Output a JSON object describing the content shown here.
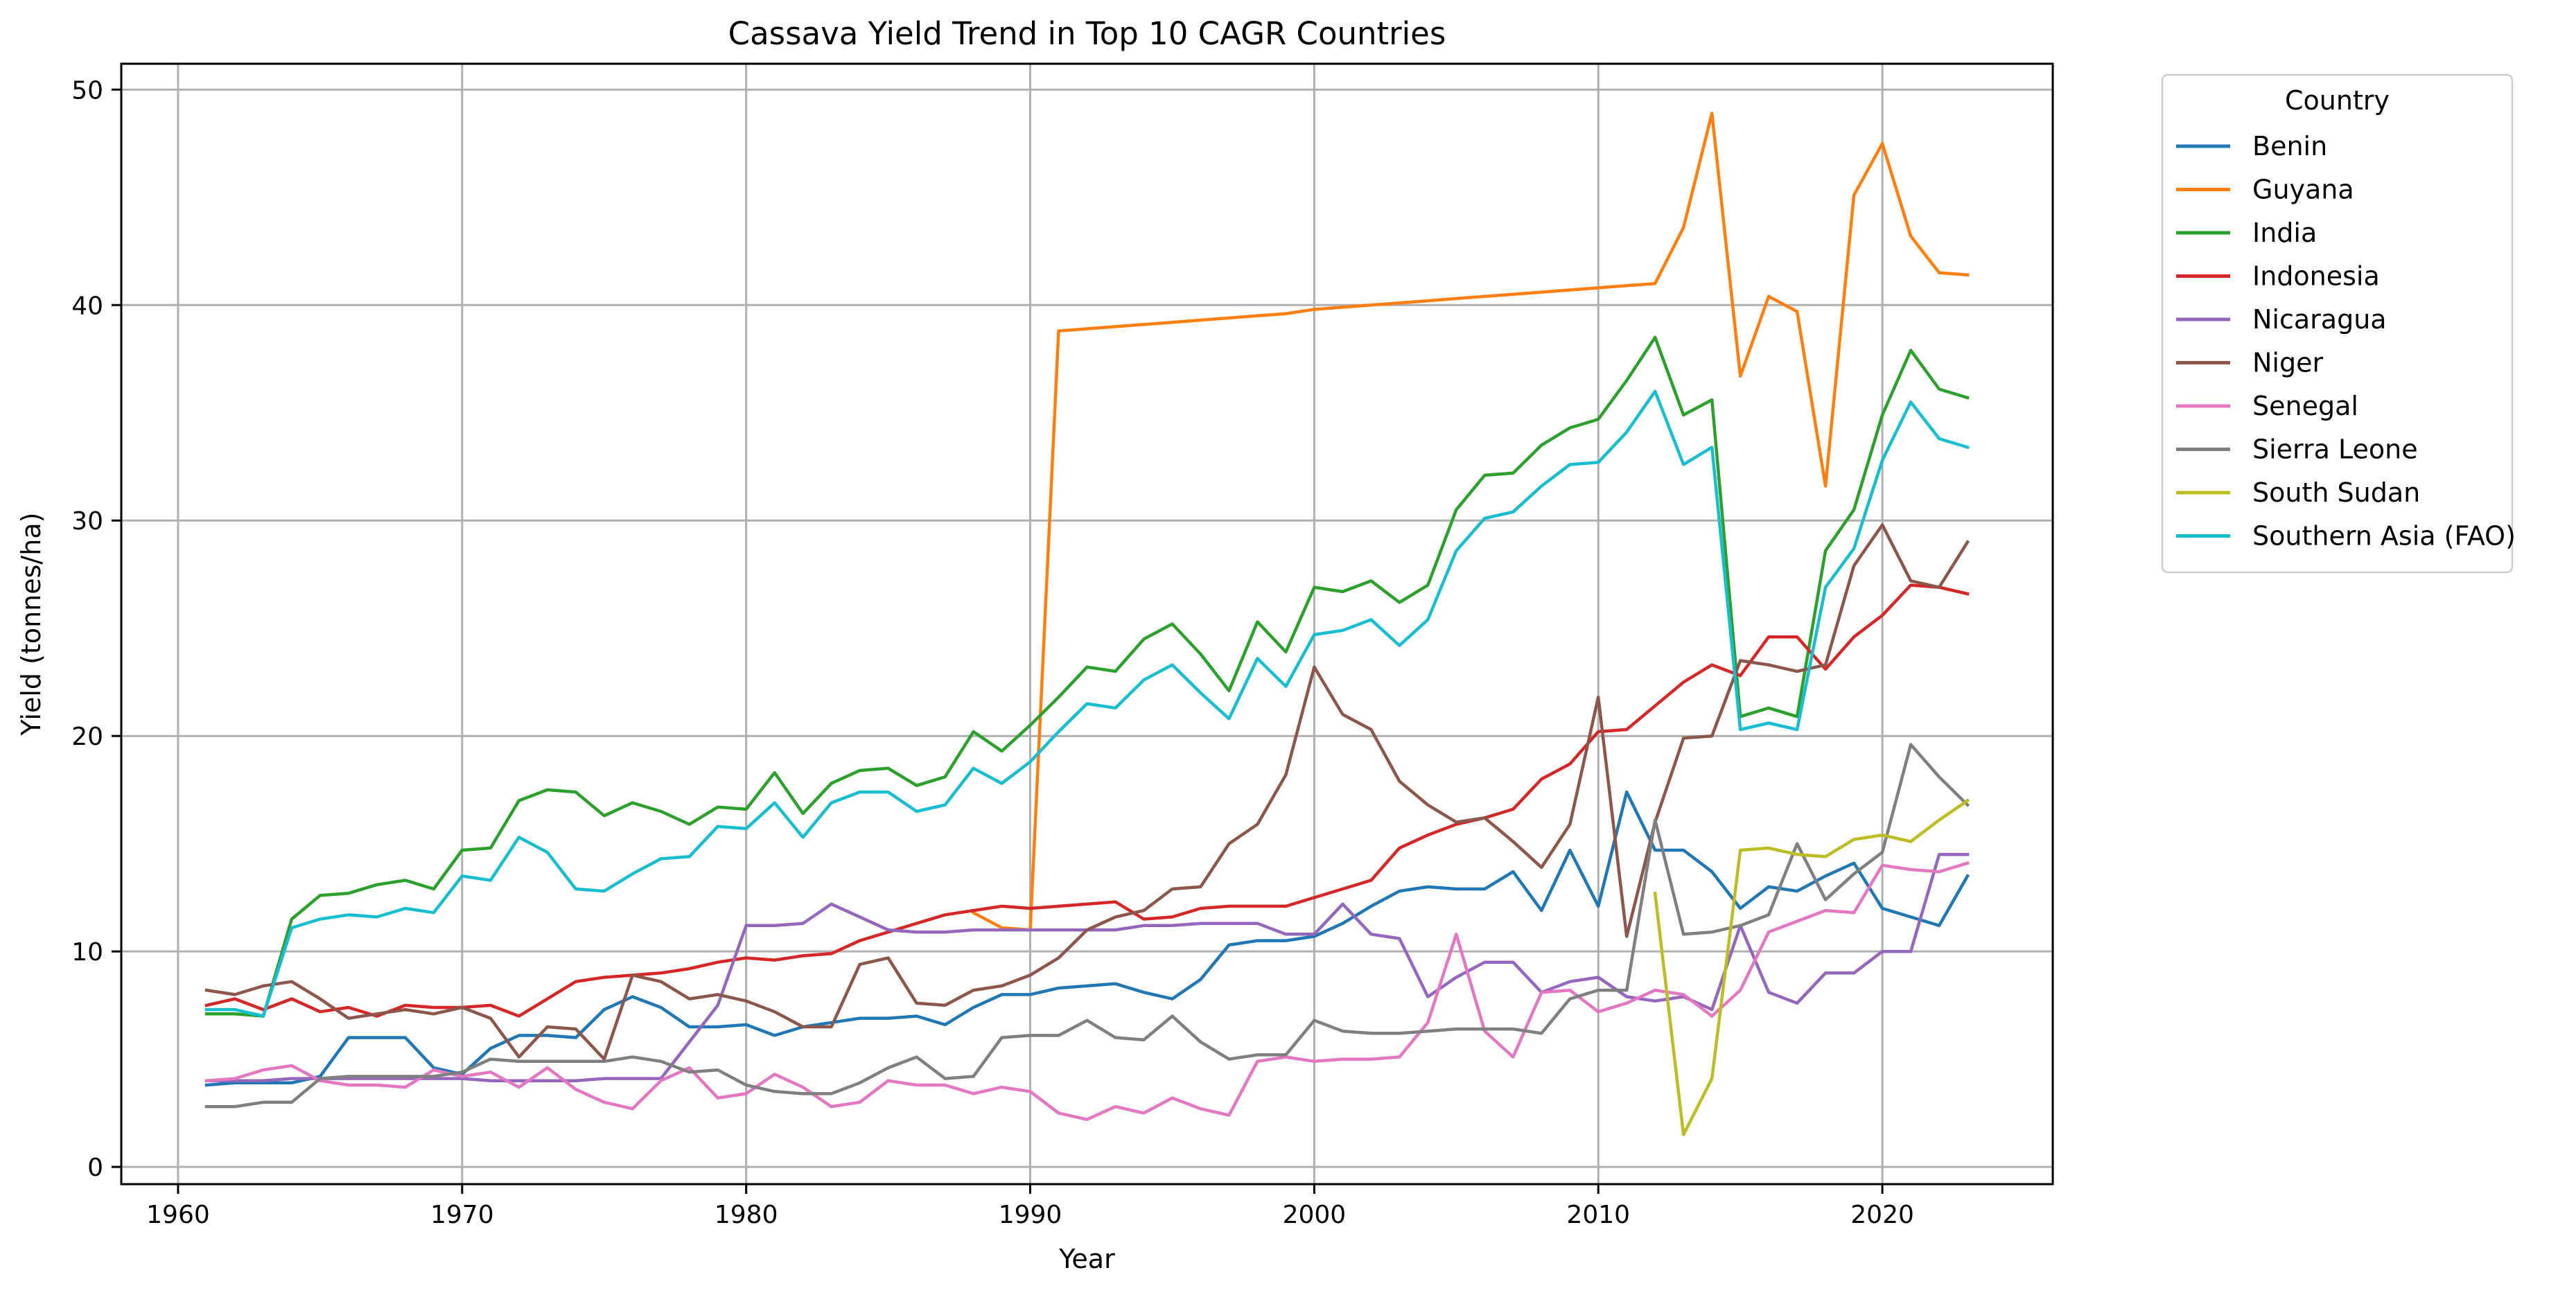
{
  "chart_data": {
    "type": "line",
    "title": "Cassava Yield Trend in Top 10 CAGR Countries",
    "xlabel": "Year",
    "ylabel": "Yield (tonnes/ha)",
    "xlim": [
      1958,
      2026
    ],
    "ylim": [
      -0.8,
      51.2
    ],
    "xticks": [
      1960,
      1970,
      1980,
      1990,
      2000,
      2010,
      2020
    ],
    "yticks": [
      0,
      10,
      20,
      30,
      40,
      50
    ],
    "grid": true,
    "legend": {
      "title": "Country",
      "placement": "outside-top-right"
    },
    "series": [
      {
        "name": "Benin",
        "color": "#1f77b4",
        "x": [
          1961,
          1962,
          1963,
          1964,
          1965,
          1966,
          1967,
          1968,
          1969,
          1970,
          1971,
          1972,
          1973,
          1974,
          1975,
          1976,
          1977,
          1978,
          1979,
          1980,
          1981,
          1982,
          1983,
          1984,
          1985,
          1986,
          1987,
          1988,
          1989,
          1990,
          1991,
          1992,
          1993,
          1994,
          1995,
          1996,
          1997,
          1998,
          1999,
          2000,
          2001,
          2002,
          2003,
          2004,
          2005,
          2006,
          2007,
          2008,
          2009,
          2010,
          2011,
          2012,
          2013,
          2014,
          2015,
          2016,
          2017,
          2018,
          2019,
          2020,
          2021,
          2022,
          2023
        ],
        "y": [
          3.8,
          3.9,
          3.9,
          3.9,
          4.2,
          6.0,
          6.0,
          6.0,
          4.6,
          4.3,
          5.5,
          6.1,
          6.1,
          6.0,
          7.3,
          7.9,
          7.4,
          6.5,
          6.5,
          6.6,
          6.1,
          6.5,
          6.7,
          6.9,
          6.9,
          7.0,
          6.6,
          7.4,
          8.0,
          8.0,
          8.3,
          8.4,
          8.5,
          8.1,
          7.8,
          8.7,
          10.3,
          10.5,
          10.5,
          10.7,
          11.3,
          12.1,
          12.8,
          13.0,
          12.9,
          12.9,
          13.7,
          11.9,
          14.7,
          12.1,
          17.4,
          14.7,
          14.7,
          13.7,
          12.0,
          13.0,
          12.8,
          13.5,
          14.1,
          12.0,
          11.6,
          11.2,
          13.5
        ]
      },
      {
        "name": "Guyana",
        "color": "#ff7f0e",
        "x": [
          1988,
          1989,
          1990,
          1991,
          1992,
          1993,
          1994,
          1995,
          1996,
          1997,
          1998,
          1999,
          2000,
          2001,
          2002,
          2003,
          2004,
          2005,
          2006,
          2007,
          2008,
          2009,
          2010,
          2011,
          2012,
          2013,
          2014,
          2015,
          2016,
          2017,
          2018,
          2019,
          2020,
          2021,
          2022,
          2023
        ],
        "y": [
          11.8,
          11.1,
          11.0,
          38.8,
          38.9,
          39.0,
          39.1,
          39.2,
          39.3,
          39.4,
          39.5,
          39.6,
          39.8,
          39.9,
          40.0,
          40.1,
          40.2,
          40.3,
          40.4,
          40.5,
          40.6,
          40.7,
          40.8,
          40.9,
          41.0,
          43.6,
          48.9,
          36.7,
          40.4,
          39.7,
          31.6,
          45.1,
          47.5,
          43.2,
          41.5,
          41.4
        ]
      },
      {
        "name": "India",
        "color": "#2ca02c",
        "x": [
          1961,
          1962,
          1963,
          1964,
          1965,
          1966,
          1967,
          1968,
          1969,
          1970,
          1971,
          1972,
          1973,
          1974,
          1975,
          1976,
          1977,
          1978,
          1979,
          1980,
          1981,
          1982,
          1983,
          1984,
          1985,
          1986,
          1987,
          1988,
          1989,
          1990,
          1991,
          1992,
          1993,
          1994,
          1995,
          1996,
          1997,
          1998,
          1999,
          2000,
          2001,
          2002,
          2003,
          2004,
          2005,
          2006,
          2007,
          2008,
          2009,
          2010,
          2011,
          2012,
          2013,
          2014,
          2015,
          2016,
          2017,
          2018,
          2019,
          2020,
          2021,
          2022,
          2023
        ],
        "y": [
          7.1,
          7.1,
          7.0,
          11.5,
          12.6,
          12.7,
          13.1,
          13.3,
          12.9,
          14.7,
          14.8,
          17.0,
          17.5,
          17.4,
          16.3,
          16.9,
          16.5,
          15.9,
          16.7,
          16.6,
          18.3,
          16.4,
          17.8,
          18.4,
          18.5,
          17.7,
          18.1,
          20.2,
          19.3,
          20.5,
          21.8,
          23.2,
          23.0,
          24.5,
          25.2,
          23.8,
          22.1,
          25.3,
          23.9,
          26.9,
          26.7,
          27.2,
          26.2,
          27.0,
          30.5,
          32.1,
          32.2,
          33.5,
          34.3,
          34.7,
          36.5,
          38.5,
          34.9,
          35.6,
          20.9,
          21.3,
          20.9,
          28.6,
          30.5,
          34.9,
          37.9,
          36.1,
          35.7
        ]
      },
      {
        "name": "Indonesia",
        "color": "#d62728",
        "x": [
          1961,
          1962,
          1963,
          1964,
          1965,
          1966,
          1967,
          1968,
          1969,
          1970,
          1971,
          1972,
          1973,
          1974,
          1975,
          1976,
          1977,
          1978,
          1979,
          1980,
          1981,
          1982,
          1983,
          1984,
          1985,
          1986,
          1987,
          1988,
          1989,
          1990,
          1991,
          1992,
          1993,
          1994,
          1995,
          1996,
          1997,
          1998,
          1999,
          2000,
          2001,
          2002,
          2003,
          2004,
          2005,
          2006,
          2007,
          2008,
          2009,
          2010,
          2011,
          2012,
          2013,
          2014,
          2015,
          2016,
          2017,
          2018,
          2019,
          2020,
          2021,
          2022,
          2023
        ],
        "y": [
          7.5,
          7.8,
          7.3,
          7.8,
          7.2,
          7.4,
          7.0,
          7.5,
          7.4,
          7.4,
          7.5,
          7.0,
          7.8,
          8.6,
          8.8,
          8.9,
          9.0,
          9.2,
          9.5,
          9.7,
          9.6,
          9.8,
          9.9,
          10.5,
          10.9,
          11.3,
          11.7,
          11.9,
          12.1,
          12.0,
          12.1,
          12.2,
          12.3,
          11.5,
          11.6,
          12.0,
          12.1,
          12.1,
          12.1,
          12.5,
          12.9,
          13.3,
          14.8,
          15.4,
          15.9,
          16.2,
          16.6,
          18.0,
          18.7,
          20.2,
          20.3,
          21.4,
          22.5,
          23.3,
          22.8,
          24.6,
          24.6,
          23.1,
          24.6,
          25.6,
          27.0,
          26.9,
          26.6
        ]
      },
      {
        "name": "Nicaragua",
        "color": "#9467bd",
        "x": [
          1961,
          1962,
          1963,
          1964,
          1965,
          1966,
          1967,
          1968,
          1969,
          1970,
          1971,
          1972,
          1973,
          1974,
          1975,
          1976,
          1977,
          1978,
          1979,
          1980,
          1981,
          1982,
          1983,
          1984,
          1985,
          1986,
          1987,
          1988,
          1989,
          1990,
          1991,
          1992,
          1993,
          1994,
          1995,
          1996,
          1997,
          1998,
          1999,
          2000,
          2001,
          2002,
          2003,
          2004,
          2005,
          2006,
          2007,
          2008,
          2009,
          2010,
          2011,
          2012,
          2013,
          2014,
          2015,
          2016,
          2017,
          2018,
          2019,
          2020,
          2021,
          2022,
          2023
        ],
        "y": [
          4.0,
          4.0,
          4.0,
          4.1,
          4.1,
          4.1,
          4.1,
          4.1,
          4.1,
          4.1,
          4.0,
          4.0,
          4.0,
          4.0,
          4.1,
          4.1,
          4.1,
          5.8,
          7.5,
          11.2,
          11.2,
          11.3,
          12.2,
          11.6,
          11.0,
          10.9,
          10.9,
          11.0,
          11.0,
          11.0,
          11.0,
          11.0,
          11.0,
          11.2,
          11.2,
          11.3,
          11.3,
          11.3,
          10.8,
          10.8,
          12.2,
          10.8,
          10.6,
          7.9,
          8.8,
          9.5,
          9.5,
          8.1,
          8.6,
          8.8,
          7.9,
          7.7,
          7.9,
          7.3,
          11.2,
          8.1,
          7.6,
          9.0,
          9.0,
          10.0,
          10.0,
          14.5,
          14.5
        ]
      },
      {
        "name": "Niger",
        "color": "#8c564b",
        "x": [
          1961,
          1962,
          1963,
          1964,
          1965,
          1966,
          1967,
          1968,
          1969,
          1970,
          1971,
          1972,
          1973,
          1974,
          1975,
          1976,
          1977,
          1978,
          1979,
          1980,
          1981,
          1982,
          1983,
          1984,
          1985,
          1986,
          1987,
          1988,
          1989,
          1990,
          1991,
          1992,
          1993,
          1994,
          1995,
          1996,
          1997,
          1998,
          1999,
          2000,
          2001,
          2002,
          2003,
          2004,
          2005,
          2006,
          2007,
          2008,
          2009,
          2010,
          2011,
          2012,
          2013,
          2014,
          2015,
          2016,
          2017,
          2018,
          2019,
          2020,
          2021,
          2022,
          2023
        ],
        "y": [
          8.2,
          8.0,
          8.4,
          8.6,
          7.8,
          6.9,
          7.1,
          7.3,
          7.1,
          7.4,
          6.9,
          5.1,
          6.5,
          6.4,
          5.0,
          8.9,
          8.6,
          7.8,
          8.0,
          7.7,
          7.2,
          6.5,
          6.5,
          9.4,
          9.7,
          7.6,
          7.5,
          8.2,
          8.4,
          8.9,
          9.7,
          11.0,
          11.6,
          11.9,
          12.9,
          13.0,
          15.0,
          15.9,
          18.2,
          23.2,
          21.0,
          20.3,
          17.9,
          16.8,
          16.0,
          16.2,
          15.1,
          13.9,
          15.9,
          21.8,
          10.7,
          16.0,
          19.9,
          20.0,
          23.5,
          23.3,
          23.0,
          23.3,
          27.9,
          29.8,
          27.2,
          26.9,
          29.0
        ]
      },
      {
        "name": "Senegal",
        "color": "#e377c2",
        "x": [
          1961,
          1962,
          1963,
          1964,
          1965,
          1966,
          1967,
          1968,
          1969,
          1970,
          1971,
          1972,
          1973,
          1974,
          1975,
          1976,
          1977,
          1978,
          1979,
          1980,
          1981,
          1982,
          1983,
          1984,
          1985,
          1986,
          1987,
          1988,
          1989,
          1990,
          1991,
          1992,
          1993,
          1994,
          1995,
          1996,
          1997,
          1998,
          1999,
          2000,
          2001,
          2002,
          2003,
          2004,
          2005,
          2006,
          2007,
          2008,
          2009,
          2010,
          2011,
          2012,
          2013,
          2014,
          2015,
          2016,
          2017,
          2018,
          2019,
          2020,
          2021,
          2022,
          2023
        ],
        "y": [
          4.0,
          4.1,
          4.5,
          4.7,
          4.0,
          3.8,
          3.8,
          3.7,
          4.5,
          4.2,
          4.4,
          3.7,
          4.6,
          3.6,
          3.0,
          2.7,
          4.0,
          4.6,
          3.2,
          3.4,
          4.3,
          3.7,
          2.8,
          3.0,
          4.0,
          3.8,
          3.8,
          3.4,
          3.7,
          3.5,
          2.5,
          2.2,
          2.8,
          2.5,
          3.2,
          2.7,
          2.4,
          4.9,
          5.1,
          4.9,
          5.0,
          5.0,
          5.1,
          6.7,
          10.8,
          6.3,
          5.1,
          8.1,
          8.2,
          7.2,
          7.6,
          8.2,
          8.0,
          7.0,
          8.2,
          10.9,
          11.4,
          11.9,
          11.8,
          14.0,
          13.8,
          13.7,
          14.1
        ]
      },
      {
        "name": "Sierra Leone",
        "color": "#7f7f7f",
        "x": [
          1961,
          1962,
          1963,
          1964,
          1965,
          1966,
          1967,
          1968,
          1969,
          1970,
          1971,
          1972,
          1973,
          1974,
          1975,
          1976,
          1977,
          1978,
          1979,
          1980,
          1981,
          1982,
          1983,
          1984,
          1985,
          1986,
          1987,
          1988,
          1989,
          1990,
          1991,
          1992,
          1993,
          1994,
          1995,
          1996,
          1997,
          1998,
          1999,
          2000,
          2001,
          2002,
          2003,
          2004,
          2005,
          2006,
          2007,
          2008,
          2009,
          2010,
          2011,
          2012,
          2013,
          2014,
          2015,
          2016,
          2017,
          2018,
          2019,
          2020,
          2021,
          2022,
          2023
        ],
        "y": [
          2.8,
          2.8,
          3.0,
          3.0,
          4.1,
          4.2,
          4.2,
          4.2,
          4.2,
          4.4,
          5.0,
          4.9,
          4.9,
          4.9,
          4.9,
          5.1,
          4.9,
          4.4,
          4.5,
          3.8,
          3.5,
          3.4,
          3.4,
          3.9,
          4.6,
          5.1,
          4.1,
          4.2,
          6.0,
          6.1,
          6.1,
          6.8,
          6.0,
          5.9,
          7.0,
          5.8,
          5.0,
          5.2,
          5.2,
          6.8,
          6.3,
          6.2,
          6.2,
          6.3,
          6.4,
          6.4,
          6.4,
          6.2,
          7.8,
          8.2,
          8.2,
          16.1,
          10.8,
          10.9,
          11.2,
          11.7,
          15.0,
          12.4,
          13.6,
          14.6,
          19.6,
          18.1,
          16.8
        ]
      },
      {
        "name": "South Sudan",
        "color": "#bcbd22",
        "x": [
          2012,
          2013,
          2014,
          2015,
          2016,
          2017,
          2018,
          2019,
          2020,
          2021,
          2022,
          2023
        ],
        "y": [
          12.7,
          1.5,
          4.1,
          14.7,
          14.8,
          14.5,
          14.4,
          15.2,
          15.4,
          15.1,
          16.1,
          17.0
        ]
      },
      {
        "name": "Southern Asia (FAO)",
        "color": "#17becf",
        "x": [
          1961,
          1962,
          1963,
          1964,
          1965,
          1966,
          1967,
          1968,
          1969,
          1970,
          1971,
          1972,
          1973,
          1974,
          1975,
          1976,
          1977,
          1978,
          1979,
          1980,
          1981,
          1982,
          1983,
          1984,
          1985,
          1986,
          1987,
          1988,
          1989,
          1990,
          1991,
          1992,
          1993,
          1994,
          1995,
          1996,
          1997,
          1998,
          1999,
          2000,
          2001,
          2002,
          2003,
          2004,
          2005,
          2006,
          2007,
          2008,
          2009,
          2010,
          2011,
          2012,
          2013,
          2014,
          2015,
          2016,
          2017,
          2018,
          2019,
          2020,
          2021,
          2022,
          2023
        ],
        "y": [
          7.3,
          7.3,
          7.0,
          11.1,
          11.5,
          11.7,
          11.6,
          12.0,
          11.8,
          13.5,
          13.3,
          15.3,
          14.6,
          12.9,
          12.8,
          13.6,
          14.3,
          14.4,
          15.8,
          15.7,
          16.9,
          15.3,
          16.9,
          17.4,
          17.4,
          16.5,
          16.8,
          18.5,
          17.8,
          18.8,
          20.2,
          21.5,
          21.3,
          22.6,
          23.3,
          22.0,
          20.8,
          23.6,
          22.3,
          24.7,
          24.9,
          25.4,
          24.2,
          25.4,
          28.6,
          30.1,
          30.4,
          31.6,
          32.6,
          32.7,
          34.1,
          36.0,
          32.6,
          33.4,
          20.3,
          20.6,
          20.3,
          26.9,
          28.7,
          32.8,
          35.5,
          33.8,
          33.4
        ]
      }
    ]
  }
}
